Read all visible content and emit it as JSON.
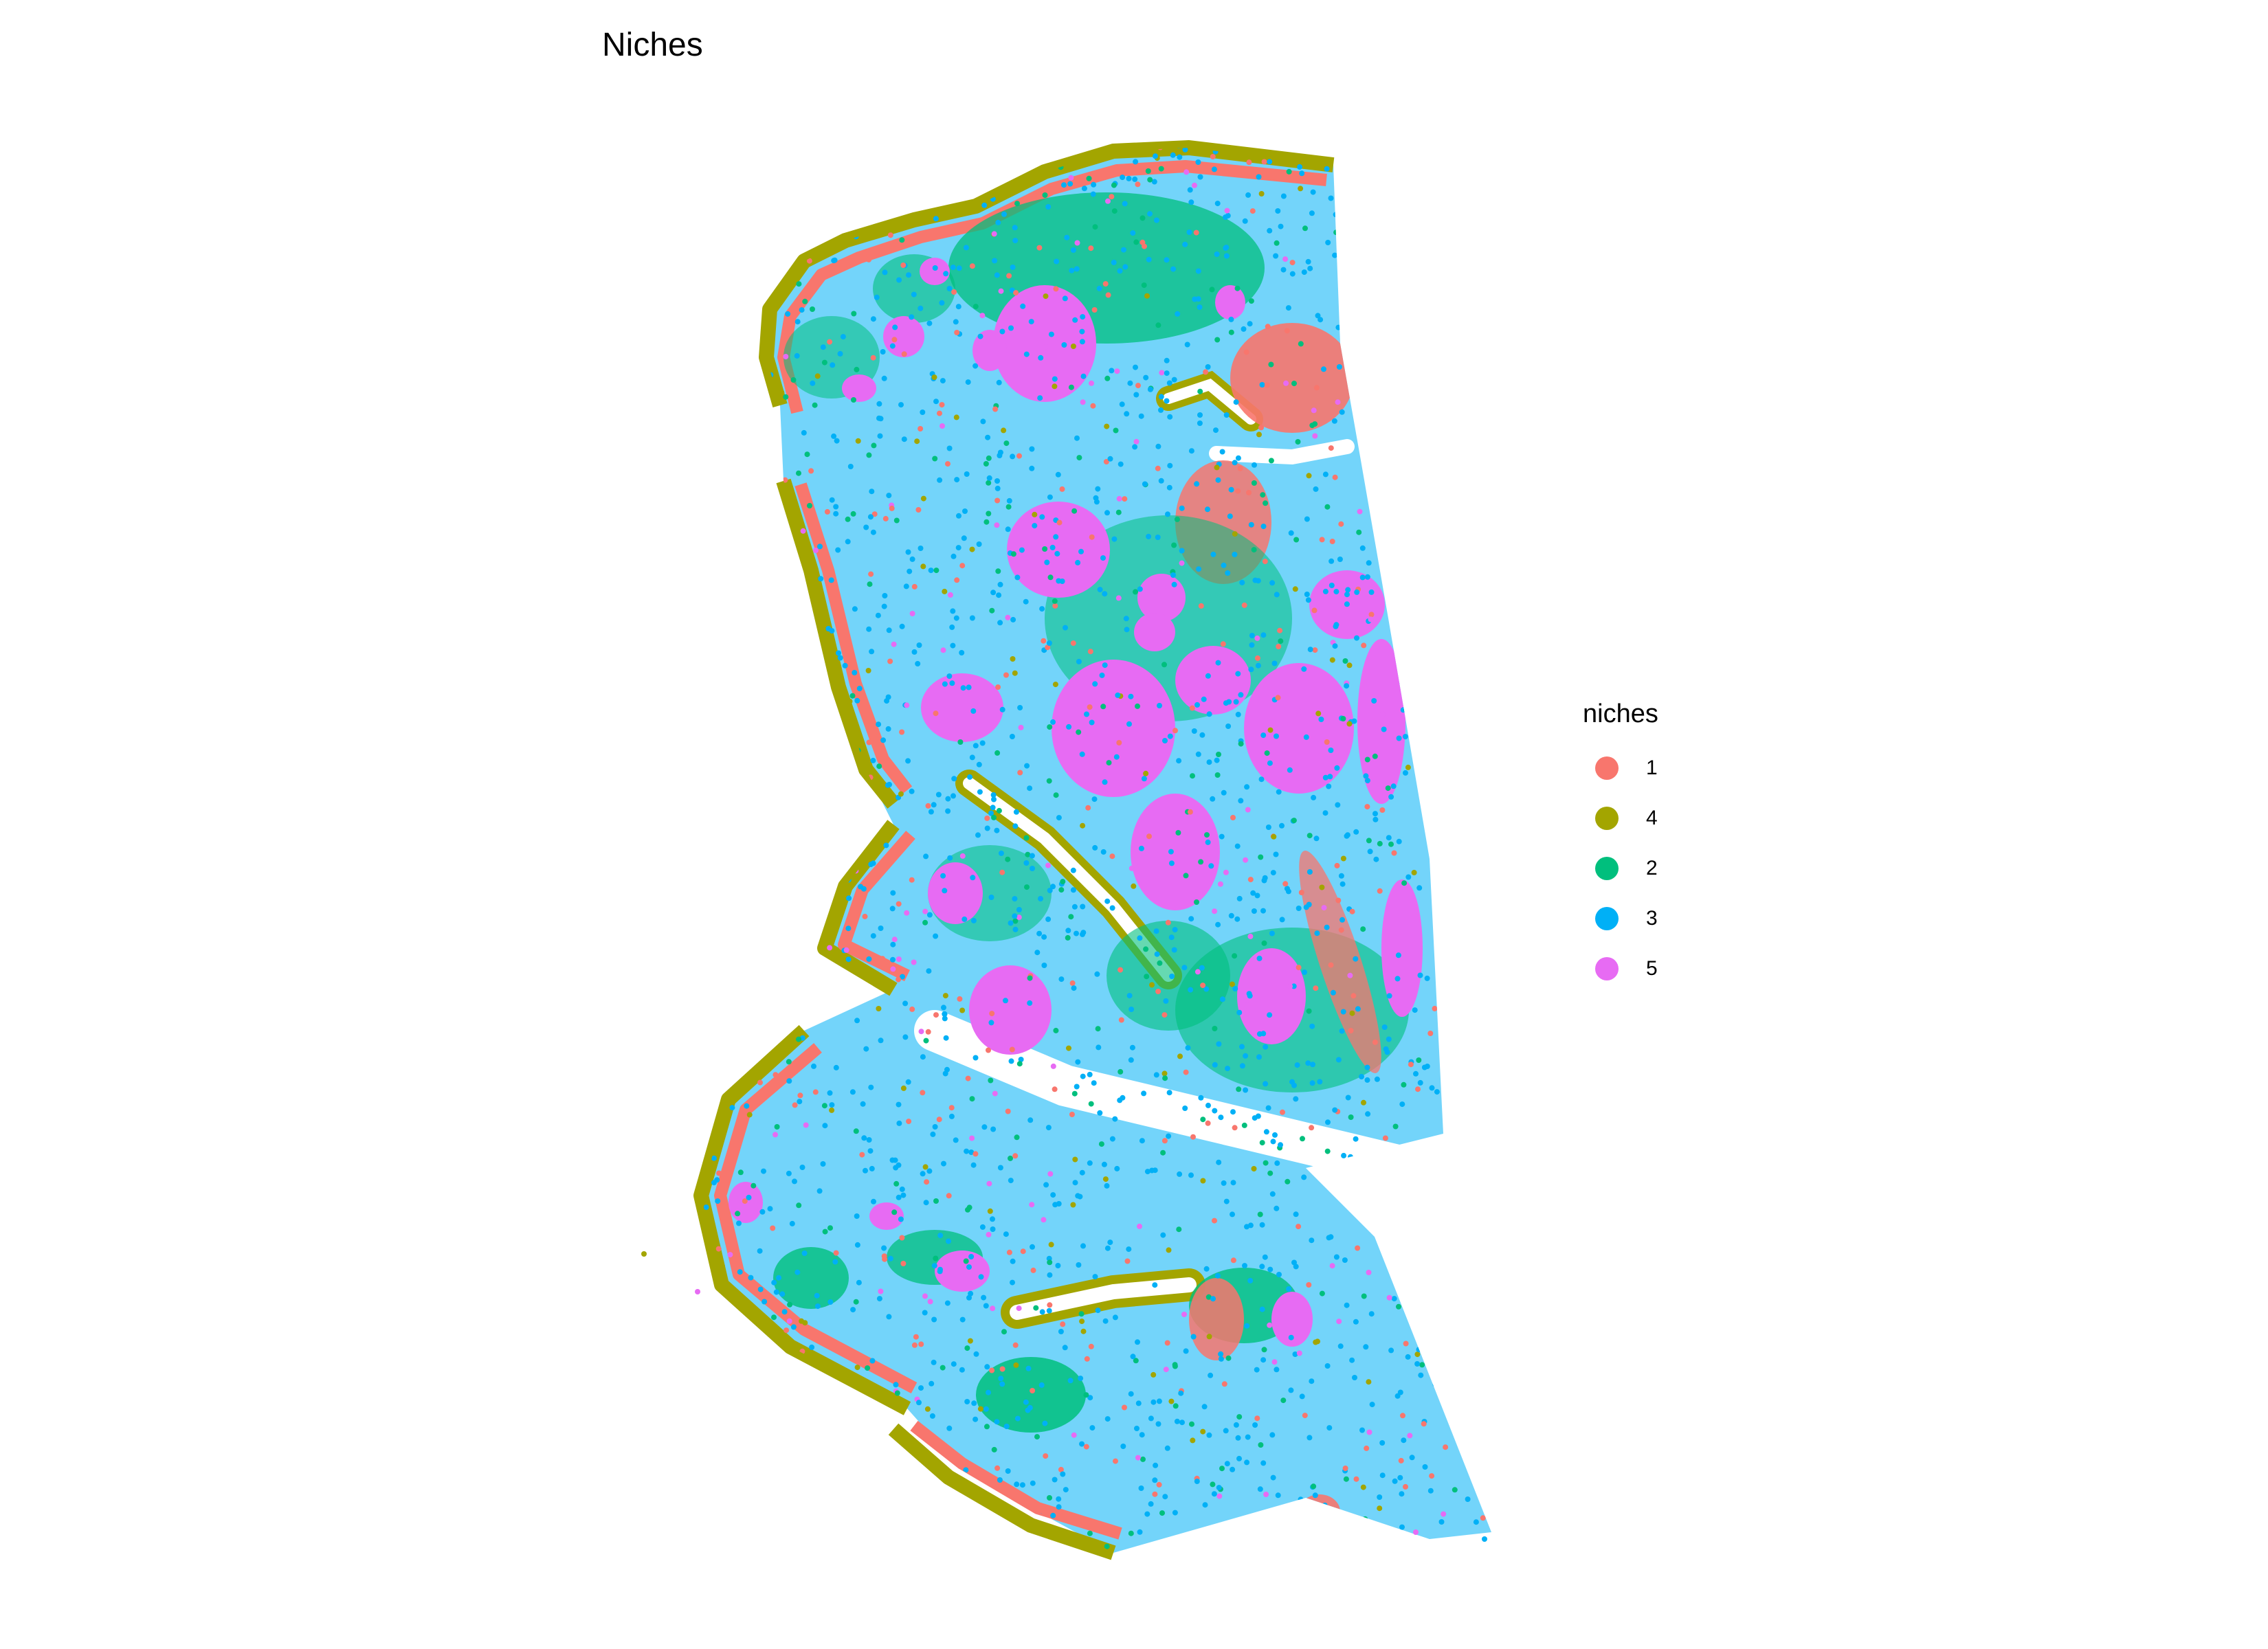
{
  "chart_data": {
    "type": "scatter",
    "title": "Niches",
    "xlabel": "",
    "ylabel": "",
    "axes_visible": false,
    "grid": false,
    "legend": {
      "title": "niches",
      "placement": "right",
      "entries": [
        {
          "label": "1",
          "color": "#F8766D"
        },
        {
          "label": "4",
          "color": "#A3A500"
        },
        {
          "label": "2",
          "color": "#00BF7D"
        },
        {
          "label": "3",
          "color": "#00B0F6"
        },
        {
          "label": "5",
          "color": "#E76BF3"
        }
      ]
    },
    "series": [
      {
        "name": "1",
        "color": "#F8766D"
      },
      {
        "name": "4",
        "color": "#A3A500"
      },
      {
        "name": "2",
        "color": "#00BF7D"
      },
      {
        "name": "3",
        "color": "#00B0F6"
      },
      {
        "name": "5",
        "color": "#E76BF3"
      }
    ]
  }
}
